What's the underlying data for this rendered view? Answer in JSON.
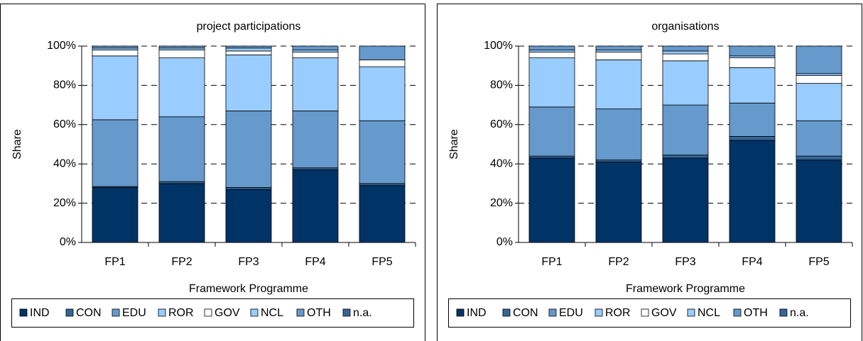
{
  "chart_data": [
    {
      "type": "bar",
      "stacked": true,
      "title": "project participations",
      "xlabel": "Framework Programme",
      "ylabel": "Share",
      "categories": [
        "FP1",
        "FP2",
        "FP3",
        "FP4",
        "FP5"
      ],
      "series": [
        {
          "name": "IND",
          "color": "#003366",
          "values": [
            28,
            30,
            27,
            37,
            29
          ]
        },
        {
          "name": "CON",
          "color": "#336699",
          "values": [
            0.5,
            1,
            1,
            1,
            1
          ]
        },
        {
          "name": "EDU",
          "color": "#6699cc",
          "values": [
            34,
            33,
            39,
            29,
            32
          ]
        },
        {
          "name": "ROR",
          "color": "#99ccff",
          "values": [
            32.5,
            30,
            28.5,
            27,
            27.5
          ]
        },
        {
          "name": "GOV",
          "color": "#ffffff",
          "values": [
            3,
            4,
            2,
            3,
            3.5
          ]
        },
        {
          "name": "NCL",
          "color": "#99ccff",
          "values": [
            1,
            1,
            1.5,
            1,
            0
          ]
        },
        {
          "name": "OTH",
          "color": "#6699cc",
          "values": [
            1,
            1,
            1,
            2,
            7
          ]
        },
        {
          "name": "n.a.",
          "color": "#336699",
          "values": [
            0,
            0,
            0,
            0,
            0
          ]
        }
      ],
      "ylim": [
        0,
        100
      ],
      "yticks": [
        {
          "value": 0,
          "label": "0%"
        },
        {
          "value": 20,
          "label": "20%"
        },
        {
          "value": 40,
          "label": "40%"
        },
        {
          "value": 60,
          "label": "60%"
        },
        {
          "value": 80,
          "label": "80%"
        },
        {
          "value": 100,
          "label": "100%"
        }
      ],
      "grid": true
    },
    {
      "type": "bar",
      "stacked": true,
      "title": "organisations",
      "xlabel": "Framework Programme",
      "ylabel": "Share",
      "categories": [
        "FP1",
        "FP2",
        "FP3",
        "FP4",
        "FP5"
      ],
      "series": [
        {
          "name": "IND",
          "color": "#003366",
          "values": [
            43,
            41,
            43,
            52,
            42
          ]
        },
        {
          "name": "CON",
          "color": "#336699",
          "values": [
            1,
            1,
            1.5,
            2,
            2
          ]
        },
        {
          "name": "EDU",
          "color": "#6699cc",
          "values": [
            25,
            26,
            25.5,
            17,
            18
          ]
        },
        {
          "name": "ROR",
          "color": "#99ccff",
          "values": [
            25,
            25,
            22.5,
            18,
            19
          ]
        },
        {
          "name": "GOV",
          "color": "#ffffff",
          "values": [
            3,
            4,
            3.5,
            5,
            4
          ]
        },
        {
          "name": "NCL",
          "color": "#99ccff",
          "values": [
            1,
            1,
            1.5,
            1,
            1
          ]
        },
        {
          "name": "OTH",
          "color": "#6699cc",
          "values": [
            2,
            2,
            2.5,
            5,
            14
          ]
        },
        {
          "name": "n.a.",
          "color": "#336699",
          "values": [
            0,
            0,
            0,
            0,
            0
          ]
        }
      ],
      "ylim": [
        0,
        100
      ],
      "yticks": [
        {
          "value": 0,
          "label": "0%"
        },
        {
          "value": 20,
          "label": "20%"
        },
        {
          "value": 40,
          "label": "40%"
        },
        {
          "value": 60,
          "label": "60%"
        },
        {
          "value": 80,
          "label": "80%"
        },
        {
          "value": 100,
          "label": "100%"
        }
      ],
      "grid": true
    }
  ]
}
